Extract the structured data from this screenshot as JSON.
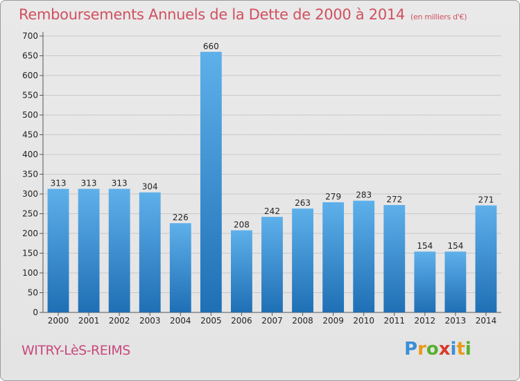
{
  "title": "Remboursements Annuels de la Dette de 2000 à 2014",
  "title_unit": "(en milliers d'€)",
  "commune": "WITRY-LèS-REIMS",
  "logo": {
    "letters": [
      "P",
      "r",
      "o",
      "x",
      "i",
      "t",
      "i"
    ],
    "colors": [
      "#3a8fd8",
      "#e89a1c",
      "#58b030",
      "#d83a2a",
      "#3a8fd8",
      "#e89a1c",
      "#58b030"
    ]
  },
  "colors": {
    "bar_top": "#5eb0ea",
    "bar_bottom": "#1f6fb5",
    "title": "#d05060",
    "commune": "#c64a7c"
  },
  "chart_data": {
    "type": "bar",
    "categories": [
      "2000",
      "2001",
      "2002",
      "2003",
      "2004",
      "2005",
      "2006",
      "2007",
      "2008",
      "2009",
      "2010",
      "2011",
      "2012",
      "2013",
      "2014"
    ],
    "values": [
      313,
      313,
      313,
      304,
      226,
      660,
      208,
      242,
      263,
      279,
      283,
      272,
      154,
      154,
      271
    ],
    "ylim": [
      0,
      700
    ],
    "yticks": [
      0,
      50,
      100,
      150,
      200,
      250,
      300,
      350,
      400,
      450,
      500,
      550,
      600,
      650,
      700
    ],
    "grid": true,
    "title": "Remboursements Annuels de la Dette de 2000 à 2014",
    "xlabel": "",
    "ylabel": ""
  }
}
